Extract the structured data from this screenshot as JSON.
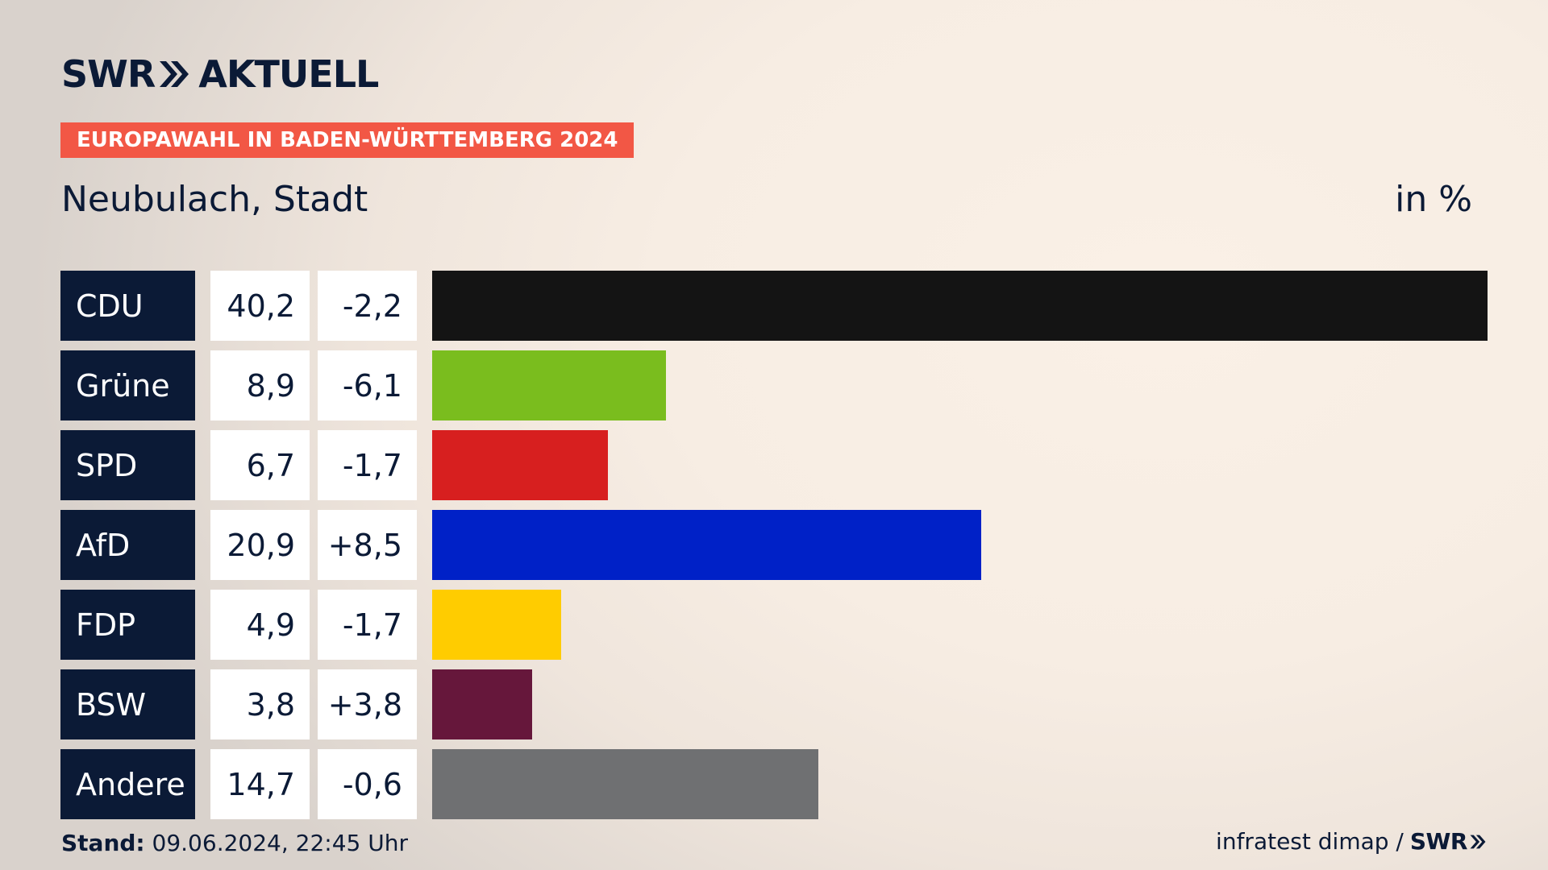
{
  "header": {
    "logo_left": "SWR",
    "logo_right": "AKTUELL",
    "tag": "EUROPAWAHL IN BADEN-WÜRTTEMBERG 2024",
    "subtitle": "Neubulach, Stadt",
    "unit": "in %"
  },
  "chart_data": {
    "type": "bar",
    "orientation": "horizontal",
    "categories": [
      "CDU",
      "Grüne",
      "SPD",
      "AfD",
      "FDP",
      "BSW",
      "Andere"
    ],
    "series": [
      {
        "values": [
          40.2,
          8.9,
          6.7,
          20.9,
          4.9,
          3.8,
          14.7
        ]
      }
    ],
    "value_labels": [
      "40,2",
      "8,9",
      "6,7",
      "20,9",
      "4,9",
      "3,8",
      "14,7"
    ],
    "change_labels": [
      "-2,2",
      "-6,1",
      "-1,7",
      "+8,5",
      "-1,7",
      "+3,8",
      "-0,6"
    ],
    "changes": [
      -2.2,
      -6.1,
      -1.7,
      8.5,
      -1.7,
      3.8,
      -0.6
    ],
    "colors": [
      "#141414",
      "#7abd1e",
      "#d71f1f",
      "#0021c7",
      "#ffcc00",
      "#66173b",
      "#6f7072"
    ],
    "xlim": [
      0,
      40.2
    ],
    "ylabel": "in %"
  },
  "footer": {
    "stand_label": "Stand:",
    "stand_value": "09.06.2024, 22:45 Uhr",
    "source": "infratest dimap /",
    "brand": "SWR"
  }
}
